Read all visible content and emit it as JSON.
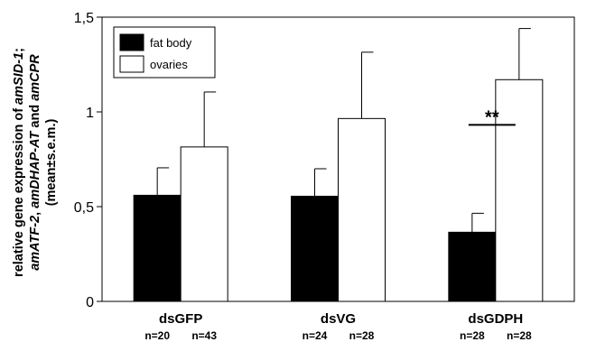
{
  "chart_data": {
    "type": "bar",
    "categories": [
      "dsGFP",
      "dsVG",
      "dsGDPH"
    ],
    "sample_sizes": [
      [
        "n=20",
        "n=43"
      ],
      [
        "n=24",
        "n=28"
      ],
      [
        "n=28",
        "n=28"
      ]
    ],
    "series": [
      {
        "name": "fat body",
        "values": [
          0.56,
          0.555,
          0.365
        ],
        "errors": [
          0.145,
          0.145,
          0.1
        ],
        "color": "#000000"
      },
      {
        "name": "ovaries",
        "values": [
          0.815,
          0.965,
          1.17
        ],
        "errors": [
          0.29,
          0.35,
          0.27
        ],
        "color": "#ffffff"
      }
    ],
    "ylabel_lines": [
      [
        {
          "text": "relative gene expression of ",
          "italic": false
        },
        {
          "text": "amSID-1",
          "italic": true
        },
        {
          "text": ";",
          "italic": false
        }
      ],
      [
        {
          "text": "amATF-2",
          "italic": true
        },
        {
          "text": ", ",
          "italic": false
        },
        {
          "text": "amDHAP-AT",
          "italic": true
        },
        {
          "text": " and ",
          "italic": false
        },
        {
          "text": "amCPR",
          "italic": true
        }
      ],
      [
        {
          "text": "(mean±s.e.m.)",
          "italic": false
        }
      ]
    ],
    "ylim": [
      0,
      1.5
    ],
    "yticks": [
      0,
      0.5,
      1,
      1.5
    ],
    "ytick_labels": [
      "0",
      "0,5",
      "1",
      "1,5"
    ],
    "annotations": [
      {
        "category": "dsGDPH",
        "text": "**"
      }
    ],
    "legend_position": "top-left",
    "grid": false
  }
}
